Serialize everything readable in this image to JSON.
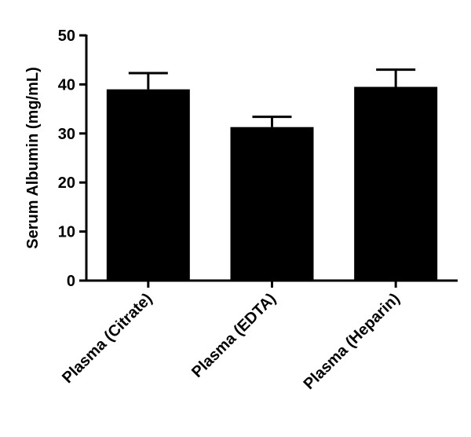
{
  "chart_data": {
    "type": "bar",
    "title": "",
    "xlabel": "",
    "ylabel": "Serum Albumin (mg/mL)",
    "categories": [
      "Plasma (Citrate)",
      "Plasma (EDTA)",
      "Plasma (Heparin)"
    ],
    "values": [
      39.0,
      31.3,
      39.5
    ],
    "error_upper": [
      3.3,
      2.1,
      3.5
    ],
    "ylim": [
      0,
      50
    ],
    "yticks": [
      0,
      10,
      20,
      30,
      40,
      50
    ],
    "ytick_labels": [
      "0",
      "10",
      "20",
      "30",
      "40",
      "50"
    ],
    "grid": false,
    "legend": "none",
    "bar_color": "#000000"
  }
}
